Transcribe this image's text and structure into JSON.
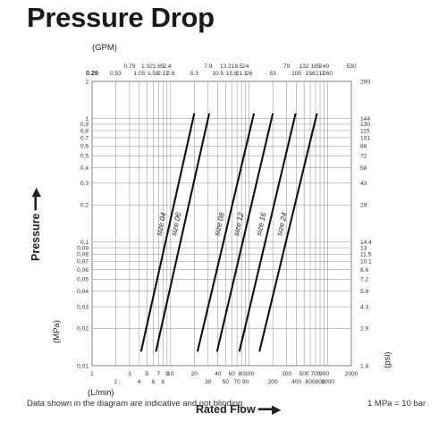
{
  "title": "Pressure Drop",
  "units": {
    "gpm": "(GPM)",
    "mpa": "(MPa)",
    "psi": "(psi)",
    "lmin": "(L/min)"
  },
  "axis_titles": {
    "y": "Pressure",
    "x": "Rated Flow"
  },
  "footer": {
    "note": "Data shown in the diagram are indicative and not blinding",
    "conversion": "1 MPa = 10 bar"
  },
  "chart_data": {
    "type": "line",
    "x_scale": "log",
    "y_scale": "log",
    "xlim": [
      1,
      2000
    ],
    "ylim": [
      0.01,
      2
    ],
    "xlabel": "(L/min)",
    "ylabel": "(MPa)",
    "grid": true,
    "x_ticks": [
      {
        "label": "1",
        "value": 1
      },
      {
        "label": "2",
        "value": 2
      },
      {
        "label": "3",
        "value": 3
      },
      {
        "label": "4",
        "value": 4
      },
      {
        "label": "5",
        "value": 5
      },
      {
        "label": "6",
        "value": 6
      },
      {
        "label": "7",
        "value": 7
      },
      {
        "label": "8",
        "value": 8
      },
      {
        "label": "9",
        "value": 9
      },
      {
        "label": "10",
        "value": 10
      },
      {
        "label": "20",
        "value": 20
      },
      {
        "label": "30",
        "value": 30
      },
      {
        "label": "40",
        "value": 40
      },
      {
        "label": "50",
        "value": 50
      },
      {
        "label": "60",
        "value": 60
      },
      {
        "label": "70",
        "value": 70
      },
      {
        "label": "80",
        "value": 80
      },
      {
        "label": "90",
        "value": 90
      },
      {
        "label": "100",
        "value": 100
      },
      {
        "label": "200",
        "value": 200
      },
      {
        "label": "300",
        "value": 300
      },
      {
        "label": "400",
        "value": 400
      },
      {
        "label": "500",
        "value": 500
      },
      {
        "label": "600",
        "value": 600
      },
      {
        "label": "700",
        "value": 700
      },
      {
        "label": "800",
        "value": 800
      },
      {
        "label": "900",
        "value": 900
      },
      {
        "label": "1000",
        "value": 1000
      },
      {
        "label": "2000",
        "value": 2000
      }
    ],
    "gpm_ticks": [
      {
        "label": "0.26",
        "value": 1
      },
      {
        "label": "0.53",
        "value": 2
      },
      {
        "label": "0.79",
        "value": 3
      },
      {
        "label": "1.05",
        "value": 4
      },
      {
        "label": "1.32",
        "value": 5
      },
      {
        "label": "1.58",
        "value": 6
      },
      {
        "label": "1.85",
        "value": 7
      },
      {
        "label": "2.11",
        "value": 8
      },
      {
        "label": "2.4",
        "value": 9
      },
      {
        "label": "2.8",
        "value": 10
      },
      {
        "label": "5.3",
        "value": 20
      },
      {
        "label": "7.9",
        "value": 30
      },
      {
        "label": "10.5",
        "value": 40
      },
      {
        "label": "13.2",
        "value": 50
      },
      {
        "label": "15.8",
        "value": 60
      },
      {
        "label": "18.5",
        "value": 70
      },
      {
        "label": "21.1",
        "value": 80
      },
      {
        "label": "24",
        "value": 90
      },
      {
        "label": "26",
        "value": 100
      },
      {
        "label": "53",
        "value": 200
      },
      {
        "label": "79",
        "value": 300
      },
      {
        "label": "105",
        "value": 400
      },
      {
        "label": "132",
        "value": 500
      },
      {
        "label": "158",
        "value": 600
      },
      {
        "label": "185",
        "value": 700
      },
      {
        "label": "211",
        "value": 800
      },
      {
        "label": "240",
        "value": 900
      },
      {
        "label": "260",
        "value": 1000
      },
      {
        "label": "530",
        "value": 2000
      }
    ],
    "y_ticks": [
      {
        "label": "2",
        "value": 2
      },
      {
        "label": "1",
        "value": 1
      },
      {
        "label": "0,9",
        "value": 0.9
      },
      {
        "label": "0,8",
        "value": 0.8
      },
      {
        "label": "0,7",
        "value": 0.7
      },
      {
        "label": "0,6",
        "value": 0.6
      },
      {
        "label": "0,5",
        "value": 0.5
      },
      {
        "label": "0,4",
        "value": 0.4
      },
      {
        "label": "0,3",
        "value": 0.3
      },
      {
        "label": "0,2",
        "value": 0.2
      },
      {
        "label": "0,1",
        "value": 0.1
      },
      {
        "label": "0,09",
        "value": 0.09
      },
      {
        "label": "0,08",
        "value": 0.08
      },
      {
        "label": "0,07",
        "value": 0.07
      },
      {
        "label": "0,06",
        "value": 0.06
      },
      {
        "label": "0,05",
        "value": 0.05
      },
      {
        "label": "0,04",
        "value": 0.04
      },
      {
        "label": "0,03",
        "value": 0.03
      },
      {
        "label": "0,02",
        "value": 0.02
      },
      {
        "label": "0,01",
        "value": 0.01
      }
    ],
    "psi_ticks": [
      {
        "label": "290",
        "value": 2
      },
      {
        "label": "144",
        "value": 1
      },
      {
        "label": "130",
        "value": 0.9
      },
      {
        "label": "115",
        "value": 0.8
      },
      {
        "label": "101",
        "value": 0.7
      },
      {
        "label": "88",
        "value": 0.6
      },
      {
        "label": "72",
        "value": 0.5
      },
      {
        "label": "58",
        "value": 0.4
      },
      {
        "label": "43",
        "value": 0.3
      },
      {
        "label": "29",
        "value": 0.2
      },
      {
        "label": "14.4",
        "value": 0.1
      },
      {
        "label": "13",
        "value": 0.09
      },
      {
        "label": "11.5",
        "value": 0.08
      },
      {
        "label": "10.1",
        "value": 0.07
      },
      {
        "label": "8.6",
        "value": 0.06
      },
      {
        "label": "7.2",
        "value": 0.05
      },
      {
        "label": "5.8",
        "value": 0.04
      },
      {
        "label": "4.3",
        "value": 0.03
      },
      {
        "label": "2.9",
        "value": 0.02
      },
      {
        "label": "1.4",
        "value": 0.01
      }
    ],
    "series": [
      {
        "name": "size 04",
        "x": [
          4.2,
          20
        ],
        "y": [
          0.013,
          1.1
        ]
      },
      {
        "name": "size 06",
        "x": [
          6.5,
          31
        ],
        "y": [
          0.013,
          1.1
        ]
      },
      {
        "name": "size 08",
        "x": [
          22,
          115
        ],
        "y": [
          0.013,
          1.1
        ]
      },
      {
        "name": "size 12",
        "x": [
          39,
          200
        ],
        "y": [
          0.013,
          1.1
        ]
      },
      {
        "name": "size 16",
        "x": [
          75,
          390
        ],
        "y": [
          0.013,
          1.1
        ]
      },
      {
        "name": "size 24",
        "x": [
          135,
          730
        ],
        "y": [
          0.013,
          1.1
        ]
      }
    ]
  }
}
